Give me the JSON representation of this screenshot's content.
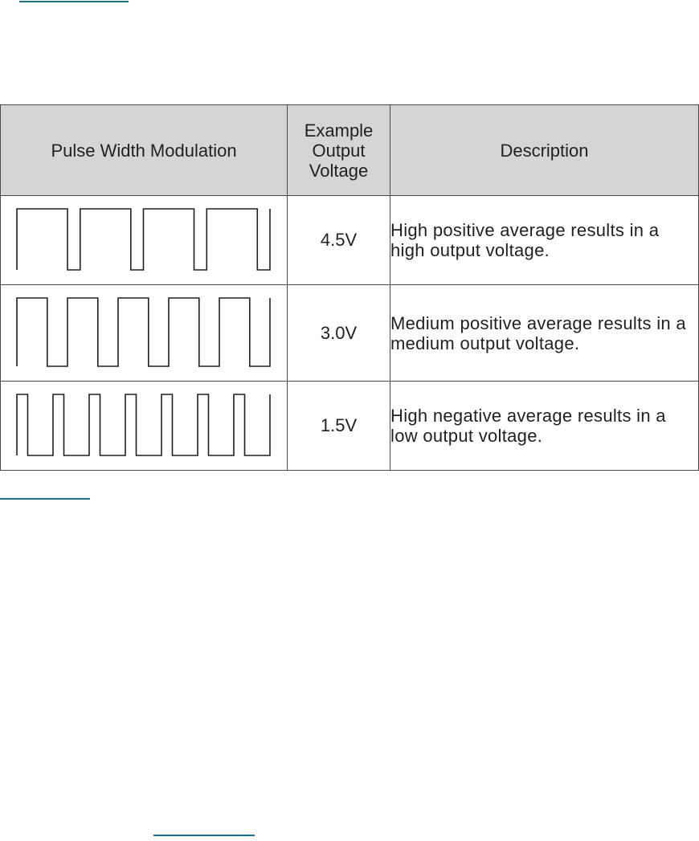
{
  "table": {
    "headers": {
      "pwm": "Pulse Width Modulation",
      "voltage": [
        "Example",
        "Output",
        "Voltage"
      ],
      "description": "Description"
    },
    "rows": [
      {
        "duty_cycle": 0.8,
        "pulses": 4,
        "voltage": "4.5V",
        "description": "High positive average results in a high output voltage."
      },
      {
        "duty_cycle": 0.6,
        "pulses": 5,
        "voltage": "3.0V",
        "description": "Medium positive average results in a medium output voltage."
      },
      {
        "duty_cycle": 0.3,
        "pulses": 7,
        "voltage": "1.5V",
        "description": "High negative average results in a low output voltage."
      }
    ]
  },
  "colors": {
    "header_bg": "#d5d5d5",
    "border": "#4a4a4a",
    "text": "#231f20",
    "link_underline": "#1a6e91"
  }
}
